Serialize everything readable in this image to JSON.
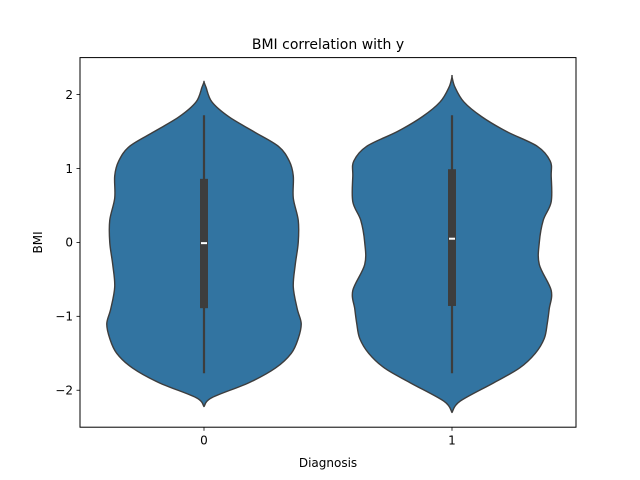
{
  "chart_data": {
    "type": "violin",
    "title": "BMI correlation with y",
    "xlabel": "Diagnosis",
    "ylabel": "BMI",
    "categories": [
      "0",
      "1"
    ],
    "ylim": [
      -2.5,
      2.5
    ],
    "yticks": [
      -2,
      -1,
      0,
      1,
      2
    ],
    "ytick_labels": [
      "−2",
      "−1",
      "0",
      "1",
      "2"
    ],
    "grid": false,
    "colors": {
      "violin_fill": "#3274a1",
      "violin_edge": "#3d3d3d",
      "box": "#3d3d3d",
      "median": "#ffffff"
    },
    "violins": [
      {
        "category": "0",
        "median": -0.01,
        "q1": -0.89,
        "q3": 0.86,
        "whisker_low": -1.77,
        "whisker_high": 1.72,
        "density_y": [
          -2.22,
          -2.1,
          -1.9,
          -1.7,
          -1.5,
          -1.3,
          -1.1,
          -0.9,
          -0.6,
          -0.3,
          0.0,
          0.3,
          0.6,
          0.9,
          1.1,
          1.3,
          1.5,
          1.7,
          1.9,
          2.1,
          2.17
        ],
        "density_w": [
          0.0,
          0.08,
          0.45,
          0.72,
          0.88,
          0.95,
          0.98,
          0.94,
          0.9,
          0.92,
          0.95,
          0.95,
          0.9,
          0.9,
          0.86,
          0.75,
          0.5,
          0.25,
          0.08,
          0.02,
          0.0
        ]
      },
      {
        "category": "1",
        "median": 0.05,
        "q1": -0.86,
        "q3": 0.99,
        "whisker_low": -1.77,
        "whisker_high": 1.72,
        "density_y": [
          -2.3,
          -2.15,
          -1.9,
          -1.7,
          -1.5,
          -1.3,
          -1.1,
          -0.9,
          -0.65,
          -0.3,
          0.0,
          0.3,
          0.55,
          0.9,
          1.1,
          1.3,
          1.5,
          1.7,
          1.9,
          2.1,
          2.24
        ],
        "density_w": [
          0.0,
          0.08,
          0.42,
          0.68,
          0.84,
          0.93,
          0.96,
          0.98,
          1.0,
          0.88,
          0.88,
          0.92,
          1.0,
          1.0,
          0.99,
          0.86,
          0.55,
          0.3,
          0.12,
          0.03,
          0.0
        ]
      }
    ]
  }
}
